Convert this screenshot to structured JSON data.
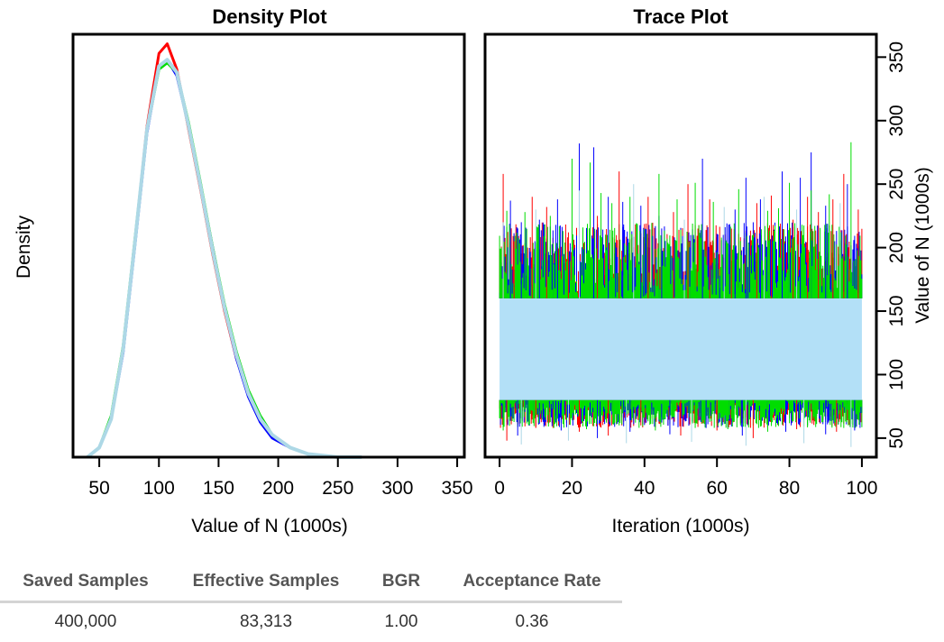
{
  "chart_data": [
    {
      "type": "line",
      "title": "Density Plot",
      "xlabel": "Value of N (1000s)",
      "ylabel": "Density",
      "xlim": [
        28,
        356
      ],
      "ylim": [
        0,
        0.0133
      ],
      "xticks": [
        "50",
        "100",
        "150",
        "200",
        "250",
        "300",
        "350"
      ],
      "grid": false,
      "series": [
        {
          "color": "#ff0000",
          "x": [
            40,
            50,
            60,
            70,
            80,
            90,
            100,
            107,
            115,
            125,
            135,
            145,
            155,
            165,
            175,
            185,
            195,
            210,
            225,
            250,
            270
          ],
          "y": [
            0.0,
            0.0003,
            0.0012,
            0.0034,
            0.0068,
            0.0104,
            0.0127,
            0.013,
            0.0122,
            0.0103,
            0.0084,
            0.0064,
            0.0046,
            0.0031,
            0.002,
            0.0012,
            0.0007,
            0.0003,
            0.0001,
            0.0,
            0.0
          ]
        },
        {
          "color": "#0000ff",
          "x": [
            40,
            50,
            60,
            70,
            80,
            90,
            100,
            107,
            115,
            125,
            135,
            145,
            155,
            165,
            175,
            185,
            195,
            210,
            225,
            250,
            270
          ],
          "y": [
            0.0,
            0.0003,
            0.0012,
            0.0033,
            0.0067,
            0.0102,
            0.0123,
            0.0125,
            0.012,
            0.0104,
            0.0085,
            0.0066,
            0.0047,
            0.0031,
            0.0019,
            0.0011,
            0.0006,
            0.0003,
            0.0001,
            0.0,
            0.0
          ]
        },
        {
          "color": "#00dd00",
          "x": [
            40,
            50,
            60,
            70,
            80,
            90,
            100,
            107,
            115,
            125,
            135,
            145,
            155,
            165,
            175,
            185,
            195,
            210,
            225,
            250,
            270
          ],
          "y": [
            0.0,
            0.0003,
            0.0013,
            0.0035,
            0.0069,
            0.0103,
            0.0122,
            0.0124,
            0.0121,
            0.0105,
            0.0086,
            0.0066,
            0.0048,
            0.0033,
            0.0021,
            0.0013,
            0.0007,
            0.0003,
            0.0001,
            0.0,
            0.0
          ]
        },
        {
          "color": "#add8e6",
          "x": [
            40,
            50,
            60,
            70,
            80,
            90,
            100,
            107,
            115,
            125,
            135,
            145,
            155,
            165,
            175,
            185,
            195,
            210,
            225,
            250,
            270
          ],
          "y": [
            0.0,
            0.0003,
            0.0012,
            0.0034,
            0.0068,
            0.0103,
            0.0123,
            0.0125,
            0.0121,
            0.0104,
            0.0085,
            0.0065,
            0.0047,
            0.0032,
            0.002,
            0.0012,
            0.0007,
            0.0003,
            0.0001,
            0.0,
            0.0
          ]
        }
      ]
    },
    {
      "type": "line",
      "title": "Trace Plot",
      "xlabel": "Iteration (1000s)",
      "ylabel": "Value of N (1000s)",
      "xlim": [
        -4,
        104
      ],
      "ylim": [
        35,
        368
      ],
      "xticks": [
        "0",
        "20",
        "40",
        "60",
        "80",
        "100"
      ],
      "yticks": [
        "50",
        "100",
        "150",
        "200",
        "250",
        "300",
        "350"
      ],
      "y_axis_side": "right",
      "grid": false,
      "iterations": [
        0,
        100
      ],
      "band": {
        "color": "#b3e0f7",
        "low": 80,
        "high": 160
      },
      "series": [
        {
          "color": "#ff0000",
          "spikes_high": [
            [
              1,
              258
            ],
            [
              4,
              205
            ],
            [
              9,
              240
            ],
            [
              13,
              232
            ],
            [
              19,
              212
            ],
            [
              27,
              225
            ],
            [
              33,
              260
            ],
            [
              41,
              240
            ],
            [
              48,
              228
            ],
            [
              52,
              250
            ],
            [
              58,
              238
            ],
            [
              64,
              215
            ],
            [
              71,
              235
            ],
            [
              75,
              241
            ],
            [
              81,
              222
            ],
            [
              85,
              240
            ],
            [
              88,
              228
            ],
            [
              92,
              238
            ],
            [
              95,
              258
            ],
            [
              99,
              230
            ]
          ],
          "spikes_low": [
            [
              2,
              48
            ],
            [
              10,
              58
            ],
            [
              22,
              55
            ],
            [
              30,
              52
            ],
            [
              39,
              60
            ],
            [
              50,
              52
            ],
            [
              60,
              56
            ],
            [
              70,
              50
            ],
            [
              82,
              57
            ],
            [
              93,
              55
            ]
          ]
        },
        {
          "color": "#0000ff",
          "spikes_high": [
            [
              3,
              237
            ],
            [
              6,
              220
            ],
            [
              11,
              222
            ],
            [
              16,
              238
            ],
            [
              22,
              282
            ],
            [
              26,
              279
            ],
            [
              30,
              240
            ],
            [
              34,
              236
            ],
            [
              39,
              233
            ],
            [
              44,
              225
            ],
            [
              56,
              270
            ],
            [
              65,
              230
            ],
            [
              68,
              255
            ],
            [
              72,
              238
            ],
            [
              78,
              260
            ],
            [
              83,
              255
            ],
            [
              86,
              275
            ],
            [
              90,
              233
            ],
            [
              96,
              250
            ]
          ],
          "spikes_low": [
            [
              5,
              52
            ],
            [
              17,
              56
            ],
            [
              27,
              50
            ],
            [
              36,
              55
            ],
            [
              47,
              53
            ],
            [
              57,
              58
            ],
            [
              67,
              52
            ],
            [
              79,
              55
            ],
            [
              90,
              53
            ],
            [
              98,
              56
            ]
          ]
        },
        {
          "color": "#00dd00",
          "spikes_high": [
            [
              2,
              229
            ],
            [
              7,
              228
            ],
            [
              14,
              225
            ],
            [
              20,
              270
            ],
            [
              25,
              267
            ],
            [
              28,
              243
            ],
            [
              31,
              235
            ],
            [
              36,
              240
            ],
            [
              44,
              258
            ],
            [
              49,
              238
            ],
            [
              54,
              251
            ],
            [
              59,
              236
            ],
            [
              66,
              246
            ],
            [
              74,
              229
            ],
            [
              77,
              231
            ],
            [
              80,
              251
            ],
            [
              86,
              245
            ],
            [
              91,
              242
            ],
            [
              97,
              283
            ]
          ],
          "spikes_low": [
            [
              1,
              56
            ],
            [
              8,
              60
            ],
            [
              15,
              58
            ],
            [
              24,
              57
            ],
            [
              33,
              60
            ],
            [
              43,
              56
            ],
            [
              54,
              58
            ],
            [
              63,
              57
            ],
            [
              74,
              55
            ],
            [
              85,
              60
            ],
            [
              95,
              58
            ]
          ]
        },
        {
          "color": "#add8e6",
          "spikes_high": [
            [
              1,
              220
            ],
            [
              10,
              230
            ],
            [
              22,
              245
            ],
            [
              37,
              250
            ],
            [
              51,
              222
            ],
            [
              62,
              232
            ],
            [
              73,
              240
            ],
            [
              82,
              230
            ],
            [
              94,
              235
            ]
          ],
          "spikes_low": [
            [
              6,
              45
            ],
            [
              19,
              48
            ],
            [
              35,
              46
            ],
            [
              53,
              47
            ],
            [
              68,
              44
            ],
            [
              84,
              46
            ],
            [
              97,
              43
            ]
          ]
        }
      ]
    }
  ],
  "stats": {
    "headers": [
      "Saved Samples",
      "Effective Samples",
      "BGR",
      "Acceptance Rate"
    ],
    "values": [
      "400,000",
      "83,313",
      "1.00",
      "0.36"
    ]
  }
}
